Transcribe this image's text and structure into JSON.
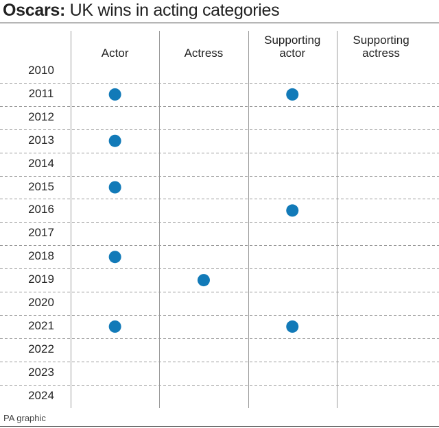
{
  "chart_data": {
    "type": "dot-matrix",
    "title_lead": "Oscars:",
    "title": "UK wins in acting categories",
    "source": "PA graphic",
    "categories": [
      "2010",
      "2011",
      "2012",
      "2013",
      "2014",
      "2015",
      "2016",
      "2017",
      "2018",
      "2019",
      "2020",
      "2021",
      "2022",
      "2023",
      "2024"
    ],
    "series": [
      {
        "name": "Actor",
        "color": "#127ab8",
        "values": [
          0,
          1,
          0,
          1,
          0,
          1,
          0,
          0,
          1,
          0,
          0,
          1,
          0,
          0,
          0
        ]
      },
      {
        "name": "Actress",
        "color": "#127ab8",
        "values": [
          0,
          0,
          0,
          0,
          0,
          0,
          0,
          0,
          0,
          1,
          0,
          0,
          0,
          0,
          0
        ]
      },
      {
        "name": "Supporting actor",
        "color": "#127ab8",
        "values": [
          0,
          1,
          0,
          0,
          0,
          0,
          1,
          0,
          0,
          0,
          0,
          1,
          0,
          0,
          0
        ]
      },
      {
        "name": "Supporting actress",
        "color": "#127ab8",
        "values": [
          0,
          0,
          0,
          0,
          0,
          0,
          0,
          0,
          0,
          0,
          0,
          0,
          0,
          0,
          0
        ]
      }
    ]
  }
}
